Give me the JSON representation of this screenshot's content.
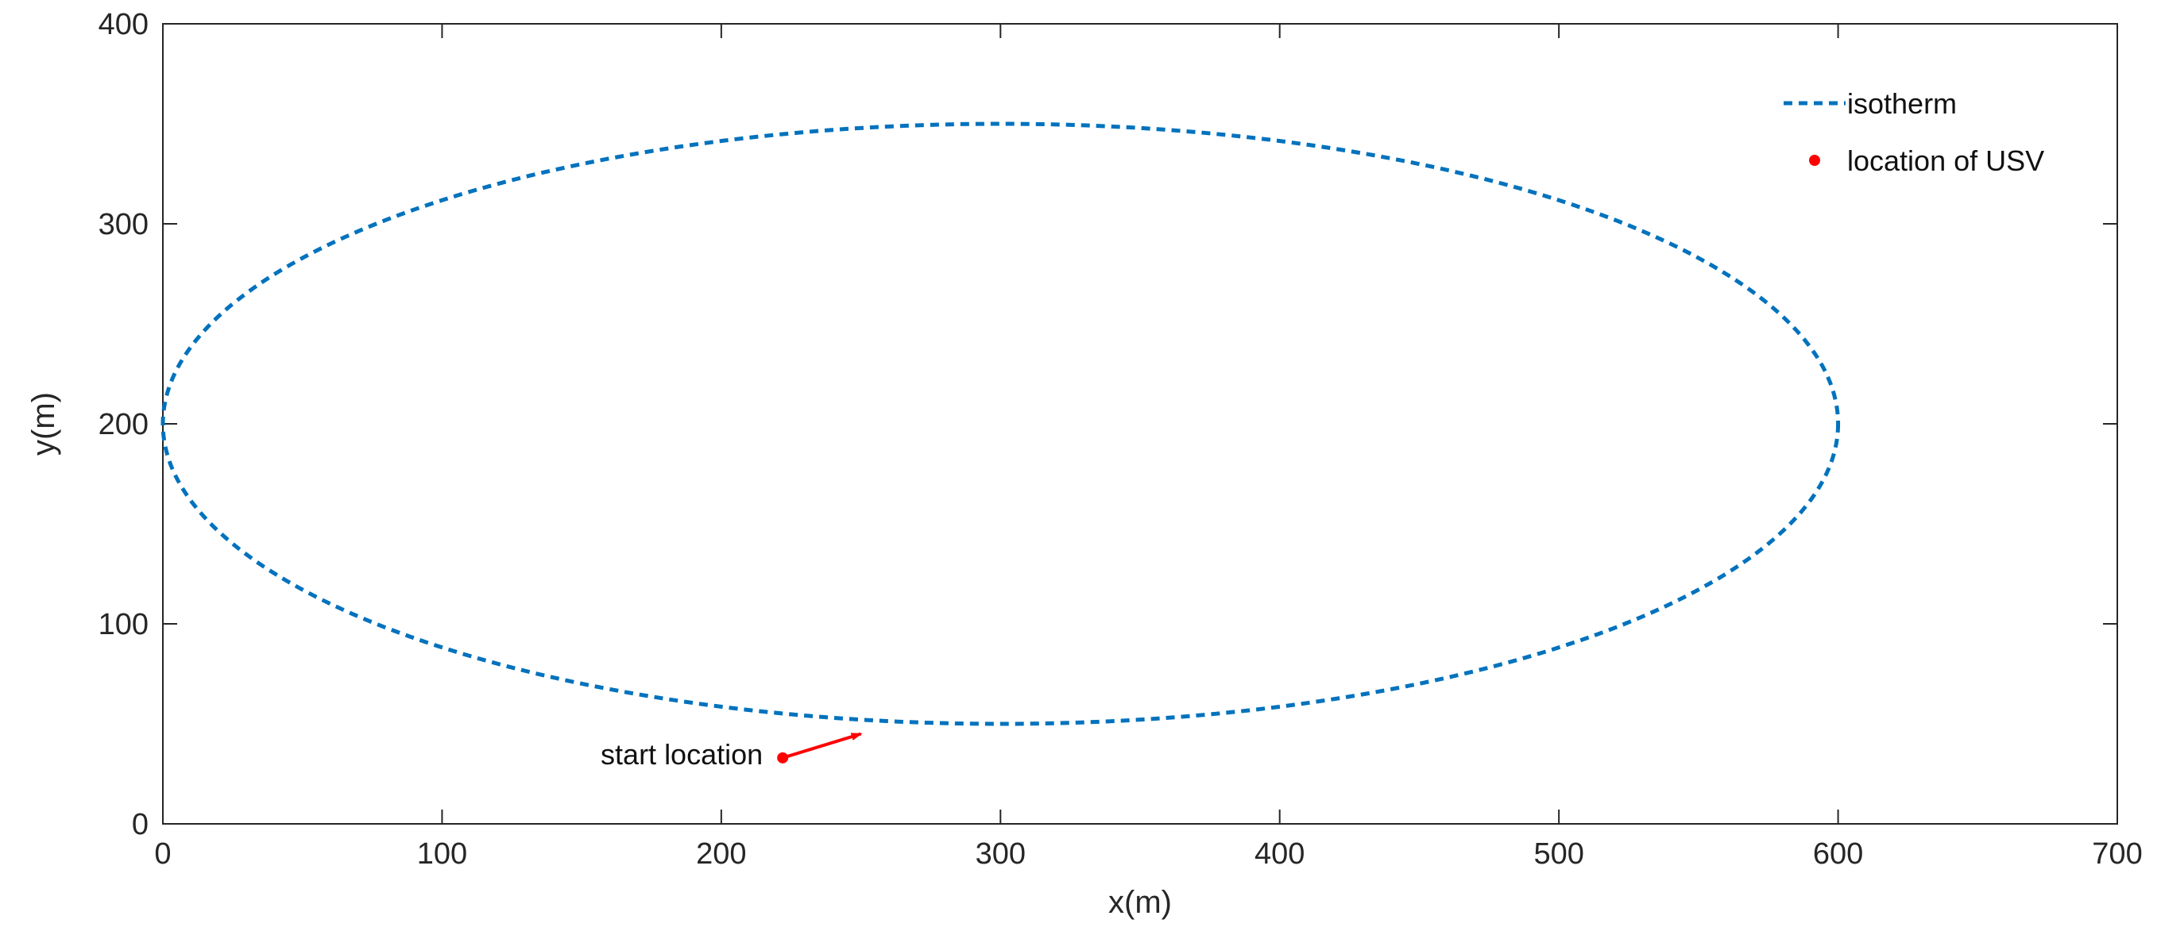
{
  "chart_data": {
    "type": "line",
    "title": "",
    "xlabel": "x(m)",
    "ylabel": "y(m)",
    "xlim": [
      0,
      700
    ],
    "ylim": [
      0,
      400
    ],
    "xticks": [
      0,
      100,
      200,
      300,
      400,
      500,
      600,
      700
    ],
    "yticks": [
      0,
      100,
      200,
      300,
      400
    ],
    "grid": false,
    "legend_position": "top-right",
    "series": [
      {
        "name": "isotherm",
        "style": "dashed-line",
        "color": "#0072BD",
        "shape": "ellipse",
        "center": [
          300,
          200
        ],
        "semi_axes": [
          300,
          150
        ]
      },
      {
        "name": "location of USV",
        "style": "marker",
        "color": "#FF0000",
        "points": [
          [
            222,
            33
          ]
        ]
      }
    ],
    "annotations": [
      {
        "text": "start location",
        "point": [
          222,
          33
        ],
        "arrow_from": [
          222,
          33
        ],
        "arrow_to": [
          250,
          45
        ],
        "color": "#FF0000"
      }
    ]
  }
}
